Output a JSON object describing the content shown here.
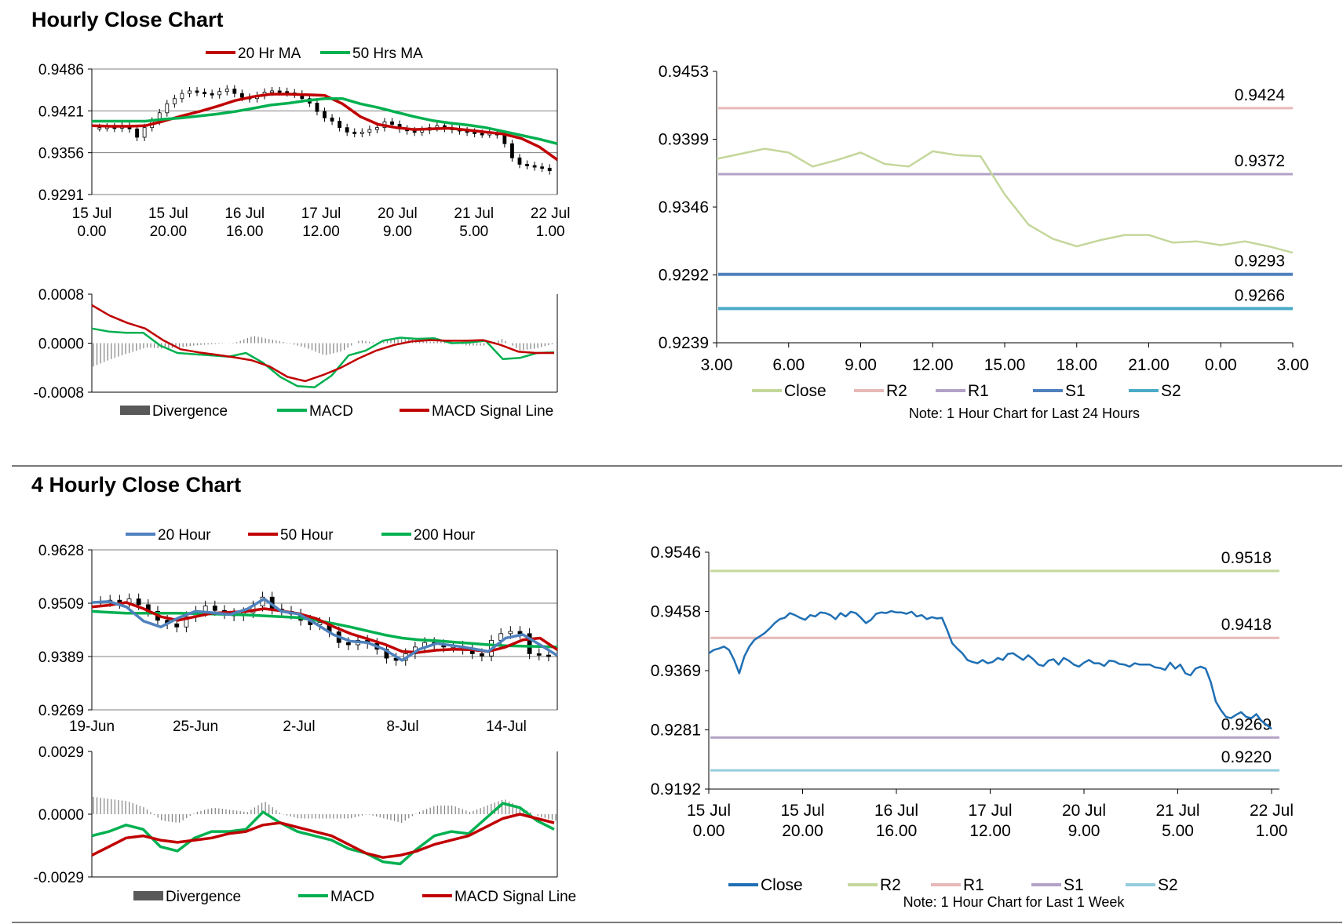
{
  "sections": {
    "hourly_title": "Hourly Close Chart",
    "four_hourly_title": "4 Hourly Close Chart"
  },
  "chart_data": [
    {
      "id": "hourly_candles",
      "type": "line",
      "title": "",
      "legend": [
        {
          "name": "20 Hr MA",
          "color": "#c00000"
        },
        {
          "name": "50 Hrs MA",
          "color": "#00b050"
        }
      ],
      "y_ticks": [
        "0.9486",
        "0.9421",
        "0.9356",
        "0.9291"
      ],
      "ylim": [
        0.9291,
        0.9486
      ],
      "x_ticks": [
        [
          "15 Jul",
          "0.00"
        ],
        [
          "15 Jul",
          "20.00"
        ],
        [
          "16 Jul",
          "16.00"
        ],
        [
          "17 Jul",
          "12.00"
        ],
        [
          "20 Jul",
          "9.00"
        ],
        [
          "21 Jul",
          "5.00"
        ],
        [
          "22 Jul",
          "1.00"
        ]
      ],
      "price_close": [
        0.9395,
        0.9396,
        0.9394,
        0.9398,
        0.9393,
        0.938,
        0.9395,
        0.9405,
        0.9418,
        0.9432,
        0.944,
        0.9448,
        0.9452,
        0.945,
        0.9448,
        0.9446,
        0.9451,
        0.9455,
        0.9448,
        0.9442,
        0.944,
        0.9445,
        0.945,
        0.9452,
        0.9451,
        0.9449,
        0.9447,
        0.944,
        0.9433,
        0.942,
        0.941,
        0.9405,
        0.9395,
        0.9388,
        0.9386,
        0.9388,
        0.9392,
        0.9395,
        0.9404,
        0.94,
        0.9393,
        0.939,
        0.9388,
        0.9391,
        0.9395,
        0.9398,
        0.9394,
        0.9392,
        0.939,
        0.9388,
        0.9386,
        0.9385,
        0.9386,
        0.9384,
        0.937,
        0.9348,
        0.9338,
        0.9336,
        0.9334,
        0.9332,
        0.9328
      ],
      "series": [
        {
          "name": "20 Hr MA",
          "color": "#c00000",
          "values": [
            0.9398,
            0.9397,
            0.9397,
            0.9398,
            0.9405,
            0.9413,
            0.942,
            0.9428,
            0.9437,
            0.9443,
            0.9447,
            0.9447,
            0.9446,
            0.9445,
            0.9432,
            0.9412,
            0.94,
            0.9395,
            0.9392,
            0.9393,
            0.9394,
            0.9391,
            0.9388,
            0.9385,
            0.9378,
            0.9365,
            0.9345
          ]
        },
        {
          "name": "50 Hrs MA",
          "color": "#00b050",
          "values": [
            0.9405,
            0.9405,
            0.9405,
            0.9405,
            0.9408,
            0.941,
            0.9413,
            0.9416,
            0.942,
            0.9425,
            0.943,
            0.9433,
            0.9437,
            0.944,
            0.944,
            0.9432,
            0.9426,
            0.9419,
            0.9412,
            0.9406,
            0.9402,
            0.9399,
            0.9395,
            0.9389,
            0.9383,
            0.9377,
            0.937
          ]
        }
      ]
    },
    {
      "id": "hourly_macd",
      "type": "line",
      "legend": [
        {
          "name": "Divergence",
          "color": "#595959"
        },
        {
          "name": "MACD",
          "color": "#00b050"
        },
        {
          "name": "MACD Signal Line",
          "color": "#c00000"
        }
      ],
      "y_ticks": [
        "0.0008",
        "0.0000",
        "-0.0008"
      ],
      "ylim": [
        -0.0008,
        0.0008
      ],
      "series": [
        {
          "name": "MACD",
          "color": "#00b050",
          "values": [
            0.00024,
            0.00019,
            0.00017,
            0.00017,
            -4e-05,
            -0.00016,
            -0.00018,
            -0.0002,
            -0.00022,
            -0.00016,
            -0.00032,
            -0.00055,
            -0.0007,
            -0.00072,
            -0.00053,
            -0.0002,
            -0.00012,
            4e-05,
            9e-05,
            7e-05,
            8e-05,
            0.0,
            1e-05,
            4e-05,
            -0.00026,
            -0.00024,
            -0.00016,
            -0.00015
          ]
        },
        {
          "name": "MACD Signal Line",
          "color": "#c00000",
          "values": [
            0.00062,
            0.00045,
            0.00033,
            0.00024,
            5e-05,
            -0.0001,
            -0.00015,
            -0.00019,
            -0.00023,
            -0.00028,
            -0.00038,
            -0.00055,
            -0.00062,
            -0.00052,
            -0.0004,
            -0.00025,
            -0.00012,
            -3e-05,
            3e-05,
            5e-05,
            4e-05,
            4e-05,
            5e-05,
            -3e-05,
            -0.00014,
            -0.00016,
            -0.00016
          ]
        },
        {
          "name": "Divergence",
          "color": "#595959",
          "values": [
            -0.00038,
            -0.00026,
            -0.00016,
            -7e-05,
            -9e-05,
            -6e-05,
            -3e-05,
            -1e-05,
            1e-05,
            0.00012,
            6e-05,
            0.0,
            -8e-05,
            -0.0002,
            -0.00013,
            5e-05,
            0.0,
            7e-05,
            6e-05,
            2e-05,
            4e-05,
            -4e-05,
            -4e-05,
            7e-05,
            -0.00012,
            -8e-05,
            0.0
          ]
        }
      ]
    },
    {
      "id": "hourly_sr",
      "type": "line",
      "note": "Note: 1 Hour Chart for Last 24 Hours",
      "y_ticks": [
        "0.9453",
        "0.9399",
        "0.9346",
        "0.9292",
        "0.9239"
      ],
      "ylim": [
        0.9239,
        0.9453
      ],
      "x_ticks": [
        "3.00",
        "6.00",
        "9.00",
        "12.00",
        "15.00",
        "18.00",
        "21.00",
        "0.00",
        "3.00"
      ],
      "levels": [
        {
          "name": "R2",
          "value": 0.9424,
          "label": "0.9424",
          "color": "#e6b9b8"
        },
        {
          "name": "R1",
          "value": 0.9372,
          "label": "0.9372",
          "color": "#b3a2c7"
        },
        {
          "name": "S1",
          "value": 0.9293,
          "label": "0.9293",
          "color": "#4f81bd"
        },
        {
          "name": "S2",
          "value": 0.9266,
          "label": "0.9266",
          "color": "#4bacc6"
        }
      ],
      "legend": [
        {
          "name": "Close",
          "color": "#c4d79b"
        },
        {
          "name": "R2",
          "color": "#e6b9b8"
        },
        {
          "name": "R1",
          "color": "#b3a2c7"
        },
        {
          "name": "S1",
          "color": "#4f81bd"
        },
        {
          "name": "S2",
          "color": "#4bacc6"
        }
      ],
      "series": [
        {
          "name": "Close",
          "color": "#c4d79b",
          "values": [
            0.9384,
            0.9388,
            0.9392,
            0.9389,
            0.9378,
            0.9383,
            0.9389,
            0.938,
            0.9378,
            0.939,
            0.9387,
            0.9386,
            0.9356,
            0.9332,
            0.9321,
            0.9315,
            0.932,
            0.9324,
            0.9324,
            0.9318,
            0.9319,
            0.9316,
            0.9319,
            0.9315,
            0.931
          ]
        }
      ]
    },
    {
      "id": "four_hourly_candles",
      "type": "line",
      "legend": [
        {
          "name": "20 Hour",
          "color": "#4f81bd"
        },
        {
          "name": "50 Hour",
          "color": "#c00000"
        },
        {
          "name": "200 Hour",
          "color": "#00b050"
        }
      ],
      "y_ticks": [
        "0.9628",
        "0.9509",
        "0.9389",
        "0.9269"
      ],
      "ylim": [
        0.9269,
        0.9628
      ],
      "x_ticks": [
        "19-Jun",
        "25-Jun",
        "2-Jul",
        "8-Jul",
        "14-Jul"
      ],
      "price_close": [
        0.9512,
        0.9515,
        0.9508,
        0.9518,
        0.9505,
        0.949,
        0.947,
        0.9462,
        0.9455,
        0.9478,
        0.949,
        0.9502,
        0.9492,
        0.9485,
        0.948,
        0.9487,
        0.9502,
        0.9522,
        0.9495,
        0.949,
        0.9484,
        0.947,
        0.946,
        0.9465,
        0.9444,
        0.942,
        0.9415,
        0.9425,
        0.9418,
        0.9405,
        0.9385,
        0.938,
        0.9395,
        0.941,
        0.942,
        0.9415,
        0.941,
        0.9412,
        0.9405,
        0.9395,
        0.939,
        0.9425,
        0.944,
        0.9445,
        0.944,
        0.9395,
        0.9392,
        0.939
      ],
      "series": [
        {
          "name": "20 Hour",
          "color": "#4f81bd",
          "values": [
            0.951,
            0.9512,
            0.95,
            0.9468,
            0.9455,
            0.9475,
            0.949,
            0.9487,
            0.9483,
            0.9495,
            0.9518,
            0.949,
            0.9484,
            0.9462,
            0.9438,
            0.9423,
            0.942,
            0.9404,
            0.938,
            0.9405,
            0.9418,
            0.9413,
            0.9407,
            0.94,
            0.943,
            0.9438,
            0.9415,
            0.9391
          ]
        },
        {
          "name": "50 Hour",
          "color": "#c00000",
          "values": [
            0.95,
            0.9504,
            0.951,
            0.9496,
            0.9478,
            0.947,
            0.9478,
            0.9486,
            0.9488,
            0.949,
            0.9496,
            0.9491,
            0.9485,
            0.9474,
            0.9456,
            0.944,
            0.9428,
            0.9416,
            0.94,
            0.9398,
            0.9403,
            0.9405,
            0.9404,
            0.94,
            0.941,
            0.9426,
            0.943,
            0.9404
          ]
        },
        {
          "name": "200 Hour",
          "color": "#00b050",
          "values": [
            0.949,
            0.9488,
            0.9486,
            0.9486,
            0.9486,
            0.9486,
            0.9485,
            0.9484,
            0.9483,
            0.9482,
            0.948,
            0.9478,
            0.9476,
            0.947,
            0.9463,
            0.9455,
            0.9446,
            0.9437,
            0.943,
            0.9426,
            0.9424,
            0.9421,
            0.9418,
            0.9415,
            0.9413,
            0.9412,
            0.9411,
            0.941
          ]
        }
      ]
    },
    {
      "id": "four_hourly_macd",
      "type": "line",
      "legend": [
        {
          "name": "Divergence",
          "color": "#595959"
        },
        {
          "name": "MACD",
          "color": "#00b050"
        },
        {
          "name": "MACD Signal Line",
          "color": "#c00000"
        }
      ],
      "y_ticks": [
        "0.0029",
        "0.0000",
        "-0.0029"
      ],
      "ylim": [
        -0.0029,
        0.0029
      ],
      "series": [
        {
          "name": "MACD",
          "color": "#00b050",
          "values": [
            -0.001,
            -0.0008,
            -0.0005,
            -0.0007,
            -0.0015,
            -0.0017,
            -0.0011,
            -0.0008,
            -0.0008,
            -0.0007,
            0.0001,
            -0.0004,
            -0.0008,
            -0.001,
            -0.0012,
            -0.0016,
            -0.0018,
            -0.0022,
            -0.0023,
            -0.0016,
            -0.001,
            -0.0008,
            -0.0009,
            -0.0002,
            0.0005,
            0.0003,
            -0.0003,
            -0.0007
          ]
        },
        {
          "name": "MACD Signal Line",
          "color": "#c00000",
          "values": [
            -0.0019,
            -0.0015,
            -0.0011,
            -0.001,
            -0.0012,
            -0.0013,
            -0.0012,
            -0.0011,
            -0.0009,
            -0.0008,
            -0.0005,
            -0.0004,
            -0.0006,
            -0.0008,
            -0.001,
            -0.0014,
            -0.0018,
            -0.002,
            -0.0019,
            -0.0017,
            -0.0014,
            -0.0012,
            -0.001,
            -0.0006,
            -0.0002,
            0.0,
            -0.0002,
            -0.0004
          ]
        },
        {
          "name": "Divergence",
          "color": "#595959",
          "values": [
            0.0008,
            0.0007,
            0.0006,
            0.0003,
            -0.0003,
            -0.0004,
            0.0001,
            0.0003,
            0.0002,
            0.0001,
            0.0006,
            0.0,
            -0.0002,
            -0.0002,
            -0.0002,
            -0.0002,
            0.0,
            -0.0002,
            -0.0004,
            0.0001,
            0.0004,
            0.0004,
            0.0001,
            0.0004,
            0.0007,
            0.0003,
            -0.0001,
            -0.0003
          ]
        }
      ]
    },
    {
      "id": "four_hourly_sr",
      "type": "line",
      "note": "Note: 1 Hour Chart for Last 1 Week",
      "y_ticks": [
        "0.9546",
        "0.9458",
        "0.9369",
        "0.9281",
        "0.9192"
      ],
      "ylim": [
        0.9192,
        0.9546
      ],
      "x_ticks": [
        [
          "15 Jul",
          "0.00"
        ],
        [
          "15 Jul",
          "20.00"
        ],
        [
          "16 Jul",
          "16.00"
        ],
        [
          "17 Jul",
          "12.00"
        ],
        [
          "20 Jul",
          "9.00"
        ],
        [
          "21 Jul",
          "5.00"
        ],
        [
          "22 Jul",
          "1.00"
        ]
      ],
      "levels": [
        {
          "name": "R2",
          "value": 0.9518,
          "label": "0.9518",
          "color": "#c4d79b"
        },
        {
          "name": "R1",
          "value": 0.9418,
          "label": "0.9418",
          "color": "#e6b9b8"
        },
        {
          "name": "S1",
          "value": 0.9269,
          "label": "0.9269",
          "color": "#b3a2c7"
        },
        {
          "name": "S2",
          "value": 0.922,
          "label": "0.9220",
          "color": "#93cddd"
        }
      ],
      "legend": [
        {
          "name": "Close",
          "color": "#1f6fb4"
        },
        {
          "name": "R2",
          "color": "#c4d79b"
        },
        {
          "name": "R1",
          "color": "#e6b9b8"
        },
        {
          "name": "S1",
          "color": "#b3a2c7"
        },
        {
          "name": "S2",
          "color": "#93cddd"
        }
      ],
      "series": [
        {
          "name": "Close",
          "color": "#1f6fb4",
          "values": [
            0.9395,
            0.94,
            0.9402,
            0.9405,
            0.94,
            0.9385,
            0.9365,
            0.939,
            0.9405,
            0.9415,
            0.942,
            0.9425,
            0.9432,
            0.944,
            0.9446,
            0.9448,
            0.9455,
            0.9452,
            0.9448,
            0.9445,
            0.9452,
            0.945,
            0.9456,
            0.9455,
            0.9452,
            0.9446,
            0.9455,
            0.945,
            0.9457,
            0.9455,
            0.9448,
            0.944,
            0.9445,
            0.9454,
            0.9456,
            0.9455,
            0.9458,
            0.9456,
            0.9456,
            0.9454,
            0.9457,
            0.945,
            0.9452,
            0.9446,
            0.9449,
            0.9447,
            0.9448,
            0.943,
            0.941,
            0.9402,
            0.9395,
            0.9385,
            0.9382,
            0.938,
            0.9385,
            0.938,
            0.9382,
            0.9388,
            0.9385,
            0.9394,
            0.9395,
            0.939,
            0.9385,
            0.9392,
            0.9386,
            0.9378,
            0.9376,
            0.9384,
            0.9386,
            0.9378,
            0.9388,
            0.9384,
            0.9378,
            0.9375,
            0.9381,
            0.9385,
            0.938,
            0.938,
            0.9376,
            0.9384,
            0.9383,
            0.9379,
            0.9378,
            0.9375,
            0.938,
            0.9378,
            0.9378,
            0.9378,
            0.9374,
            0.9373,
            0.937,
            0.9381,
            0.9372,
            0.9378,
            0.9365,
            0.9362,
            0.9372,
            0.9375,
            0.9372,
            0.9352,
            0.9323,
            0.931,
            0.93,
            0.9298,
            0.9303,
            0.9307,
            0.93,
            0.9298,
            0.9304,
            0.9294,
            0.9288,
            0.9282
          ]
        }
      ]
    }
  ]
}
